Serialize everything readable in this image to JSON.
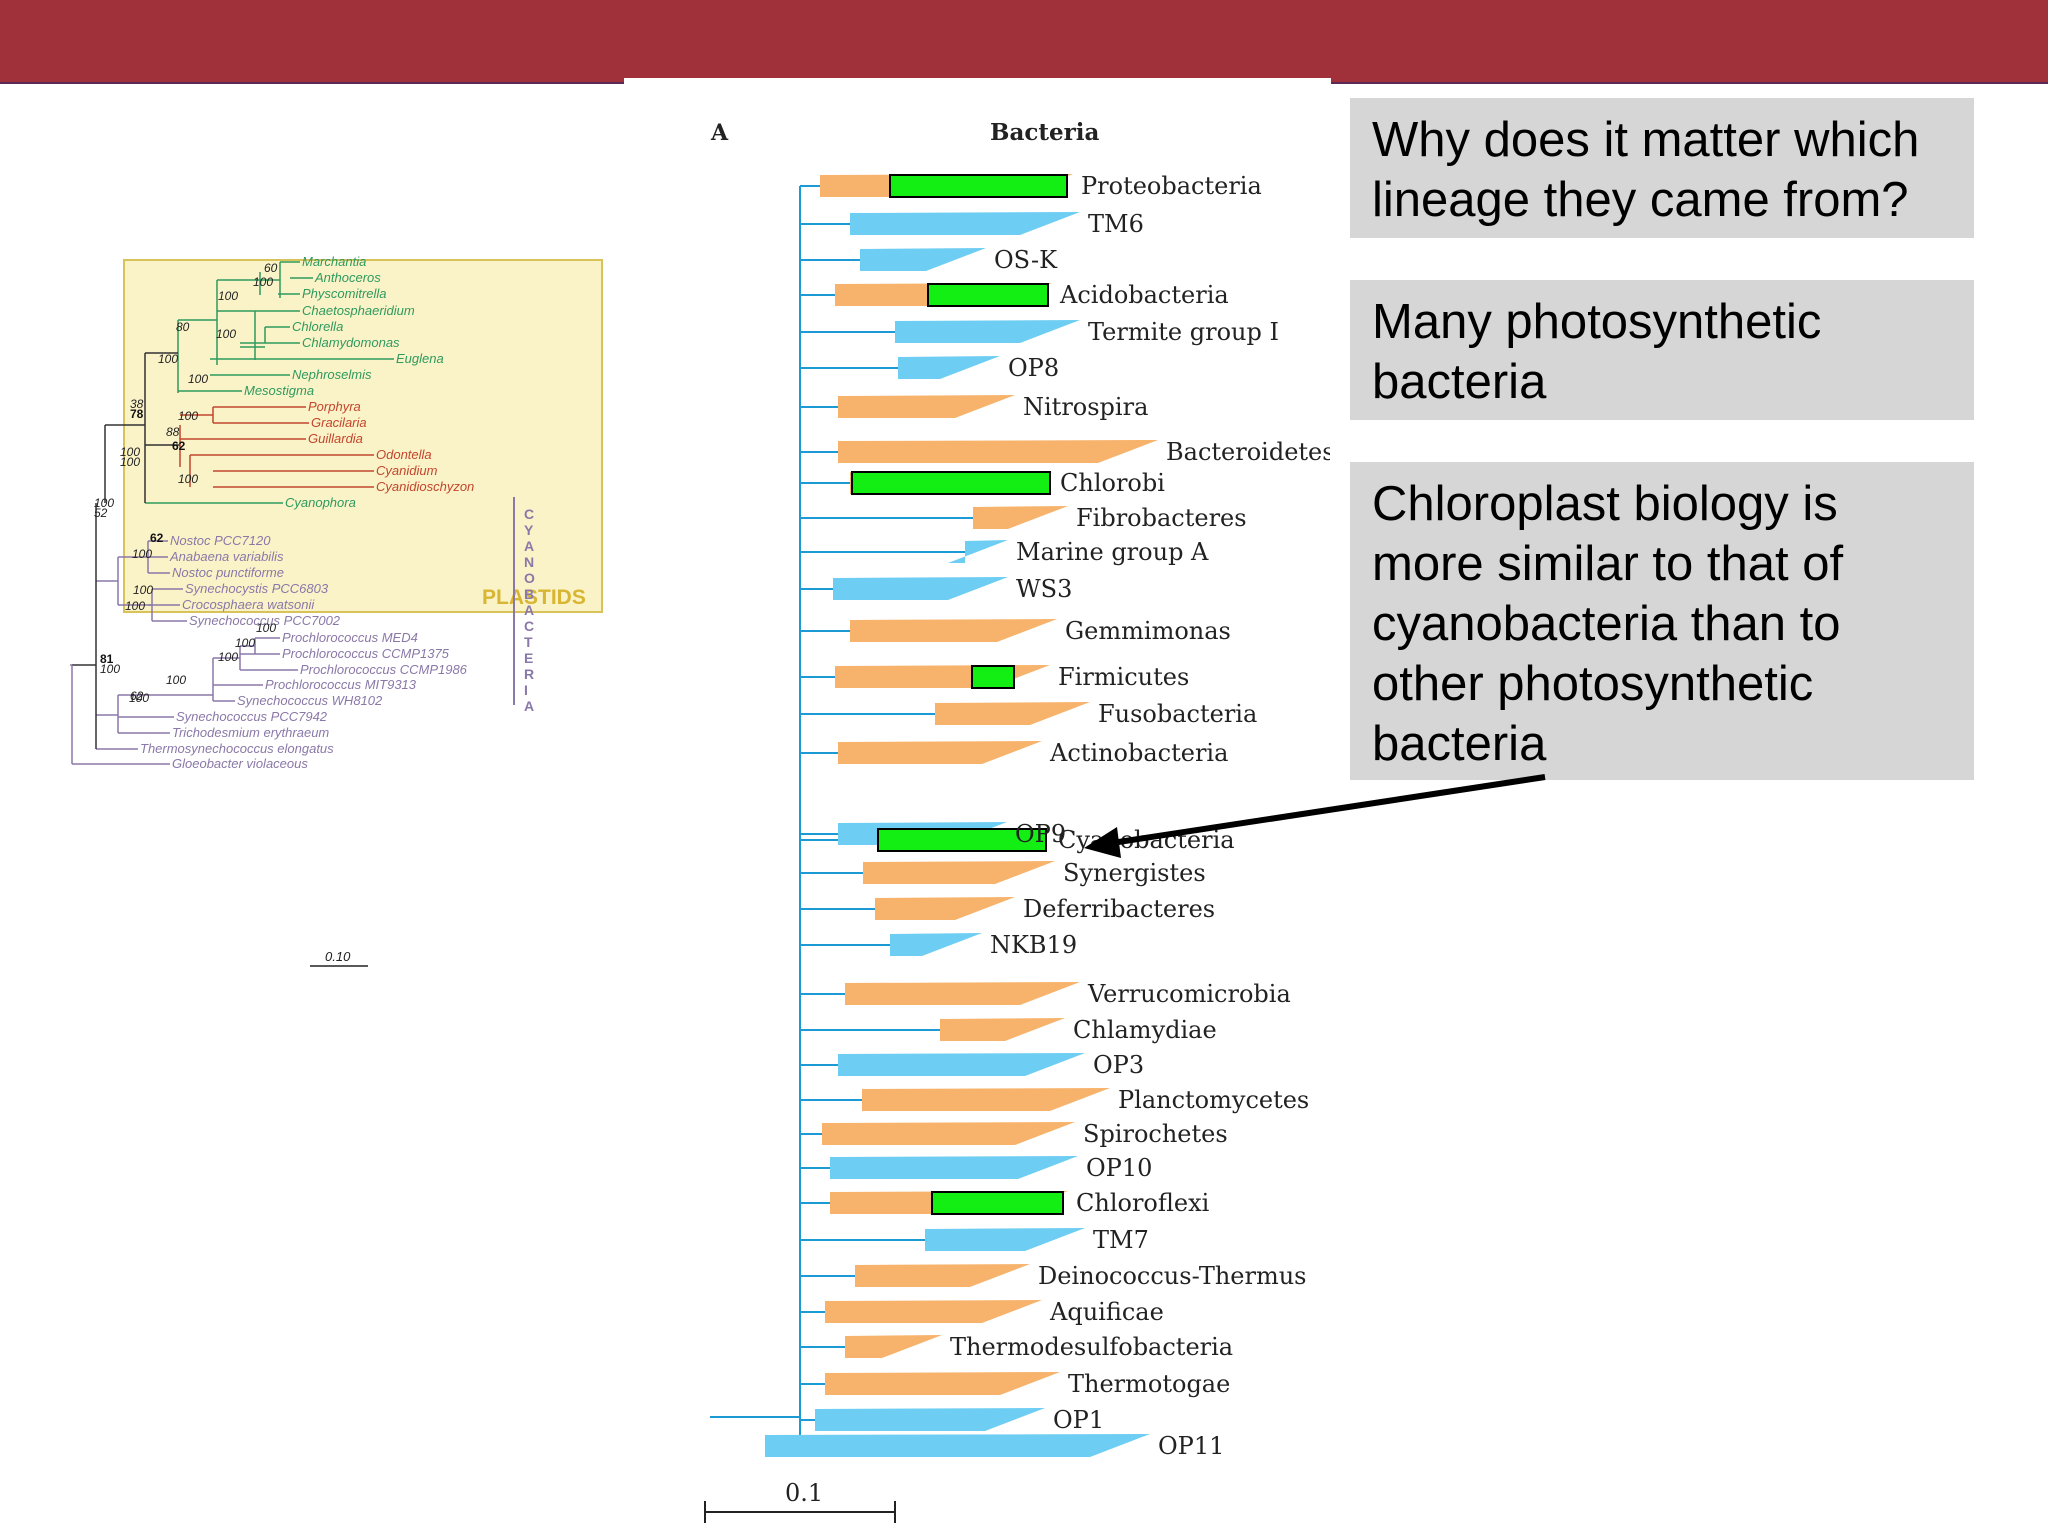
{
  "callouts": [
    "Why does it matter which lineage they came from?",
    "Many photosynthetic bacteria",
    "Chloroplast biology is more similar to that of cyanobacteria than to other photosynthetic bacteria"
  ],
  "main_tree": {
    "panel_label": "A",
    "title": "Bacteria",
    "scale_label": "0.1",
    "colors": {
      "branch": "#1c9ad6",
      "orange": "#f7b36b",
      "blue": "#6dcdf2",
      "photosynthetic": "#13ee13"
    },
    "taxa": [
      {
        "name": "Proteobacteria",
        "color": "orange",
        "photo": true
      },
      {
        "name": "TM6",
        "color": "blue",
        "photo": false
      },
      {
        "name": "OS-K",
        "color": "blue",
        "photo": false
      },
      {
        "name": "Acidobacteria",
        "color": "orange",
        "photo": true
      },
      {
        "name": "Termite group I",
        "color": "blue",
        "photo": false
      },
      {
        "name": "OP8",
        "color": "blue",
        "photo": false
      },
      {
        "name": "Nitrospira",
        "color": "orange",
        "photo": false
      },
      {
        "name": "Bacteroidetes",
        "color": "orange",
        "photo": false
      },
      {
        "name": "Chlorobi",
        "color": "orange",
        "photo": true
      },
      {
        "name": "Fibrobacteres",
        "color": "orange",
        "photo": false
      },
      {
        "name": "Marine group A",
        "color": "blue",
        "photo": false
      },
      {
        "name": "WS3",
        "color": "blue",
        "photo": false
      },
      {
        "name": "Gemmimonas",
        "color": "orange",
        "photo": false
      },
      {
        "name": "Firmicutes",
        "color": "orange",
        "photo": true
      },
      {
        "name": "Fusobacteria",
        "color": "orange",
        "photo": false
      },
      {
        "name": "Actinobacteria",
        "color": "orange",
        "photo": false
      },
      {
        "name": "OP9",
        "color": "blue",
        "photo": false
      },
      {
        "name": "Cyanobacteria",
        "color": "orange",
        "photo": true
      },
      {
        "name": "Synergistes",
        "color": "orange",
        "photo": false
      },
      {
        "name": "Deferribacteres",
        "color": "orange",
        "photo": false
      },
      {
        "name": "NKB19",
        "color": "blue",
        "photo": false
      },
      {
        "name": "Verrucomicrobia",
        "color": "orange",
        "photo": false
      },
      {
        "name": "Chlamydiae",
        "color": "orange",
        "photo": false
      },
      {
        "name": "OP3",
        "color": "blue",
        "photo": false
      },
      {
        "name": "Planctomycetes",
        "color": "orange",
        "photo": false
      },
      {
        "name": "Spirochetes",
        "color": "orange",
        "photo": false
      },
      {
        "name": "OP10",
        "color": "blue",
        "photo": false
      },
      {
        "name": "Chloroflexi",
        "color": "orange",
        "photo": true
      },
      {
        "name": "TM7",
        "color": "blue",
        "photo": false
      },
      {
        "name": "Deinococcus-Thermus",
        "color": "orange",
        "photo": false
      },
      {
        "name": "Aquificae",
        "color": "orange",
        "photo": false
      },
      {
        "name": "Thermodesulfobacteria",
        "color": "orange",
        "photo": false
      },
      {
        "name": "Thermotogae",
        "color": "orange",
        "photo": false
      },
      {
        "name": "OP1",
        "color": "blue",
        "photo": false
      },
      {
        "name": "OP11",
        "color": "blue",
        "photo": false
      }
    ]
  },
  "small_tree": {
    "plastids_label": "PLASTIDS",
    "cyano_label": "CYANOBACTERIA",
    "scale_label": "0.10",
    "colors": {
      "green": "#2e9a5e",
      "red": "#c2452d",
      "purple": "#8a78a8",
      "dark": "#333333",
      "box_fill": "#fbf3c8",
      "box_border": "#d9c25a",
      "plastids_text": "#d8b533"
    },
    "green_taxa": [
      "Marchantia",
      "Anthoceros",
      "Physcomitrella",
      "Chaetosphaeridium",
      "Chlorella",
      "Chlamydomonas",
      "Euglena",
      "Nephroselmis",
      "Mesostigma"
    ],
    "red_taxa": [
      "Porphyra",
      "Gracilaria",
      "Guillardia",
      "Odontella",
      "Cyanidium",
      "Cyanidioschyzon"
    ],
    "glauco_taxa": [
      "Cyanophora"
    ],
    "cyano_taxa": [
      "Nostoc PCC7120",
      "Anabaena variabilis",
      "Nostoc punctiforme",
      "Synechocystis PCC6803",
      "Crocosphaera watsonii",
      "Synechococcus PCC7002",
      "Prochlorococcus MED4",
      "Prochlorococcus CCMP1375",
      "Prochlorococcus CCMP1986",
      "Prochlorococcus MIT9313",
      "Synechococcus WH8102",
      "Synechococcus PCC7942",
      "Trichodesmium erythraeum",
      "Thermosynechococcus elongatus",
      "Gloeobacter violaceous"
    ],
    "bootstraps": [
      "60",
      "100",
      "100",
      "80",
      "100",
      "100",
      "100",
      "38",
      "78",
      "100",
      "88",
      "62",
      "100",
      "100",
      "100",
      "100",
      "52",
      "62",
      "100",
      "100",
      "100",
      "100",
      "100",
      "100",
      "100",
      "62",
      "81",
      "100",
      "100"
    ]
  }
}
